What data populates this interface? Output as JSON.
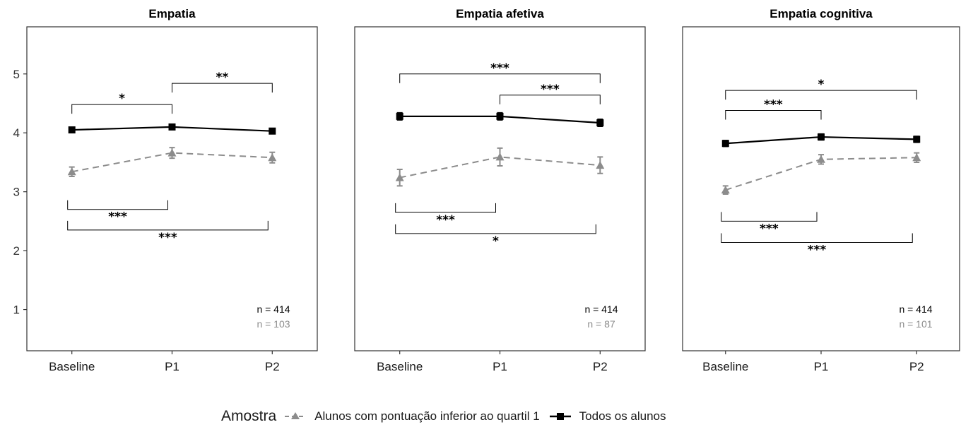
{
  "chart_data": [
    {
      "type": "line",
      "title": "Empatia",
      "categories": [
        "Baseline",
        "P1",
        "P2"
      ],
      "ylim": [
        0.3,
        5.8
      ],
      "yticks": [
        1,
        2,
        3,
        4,
        5
      ],
      "series": [
        {
          "name": "Alunos com pontuação inferior ao quartil 1",
          "values": [
            3.34,
            3.66,
            3.58
          ],
          "error": [
            0.08,
            0.09,
            0.09
          ],
          "color": "#8c8c8c",
          "dash": true,
          "marker": "triangle"
        },
        {
          "name": "Todos os alunos",
          "values": [
            4.05,
            4.1,
            4.03
          ],
          "error": [
            0.04,
            0.04,
            0.04
          ],
          "color": "#000000",
          "dash": false,
          "marker": "square"
        }
      ],
      "annotations": {
        "top": [
          {
            "from": 0,
            "to": 1,
            "level": 4.48,
            "label": "*"
          },
          {
            "from": 1,
            "to": 2,
            "level": 4.84,
            "label": "**"
          }
        ],
        "bottom": [
          {
            "from": 0,
            "to": 1,
            "level": 2.7,
            "label": "***"
          },
          {
            "from": 0,
            "to": 2,
            "level": 2.35,
            "label": "***"
          }
        ]
      },
      "n_all": "n = 414",
      "n_low": "n = 103"
    },
    {
      "type": "line",
      "title": "Empatia afetiva",
      "categories": [
        "Baseline",
        "P1",
        "P2"
      ],
      "ylim": [
        0.3,
        5.8
      ],
      "yticks": [
        1,
        2,
        3,
        4,
        5
      ],
      "series": [
        {
          "name": "Alunos com pontuação inferior ao quartil 1",
          "values": [
            3.24,
            3.59,
            3.45
          ],
          "error": [
            0.14,
            0.15,
            0.14
          ],
          "color": "#8c8c8c",
          "dash": true,
          "marker": "triangle"
        },
        {
          "name": "Todos os alunos",
          "values": [
            4.28,
            4.28,
            4.17
          ],
          "error": [
            0.06,
            0.06,
            0.06
          ],
          "color": "#000000",
          "dash": false,
          "marker": "square"
        }
      ],
      "annotations": {
        "top": [
          {
            "from": 0,
            "to": 2,
            "level": 5.0,
            "label": "***"
          },
          {
            "from": 1,
            "to": 2,
            "level": 4.64,
            "label": "***"
          }
        ],
        "bottom": [
          {
            "from": 0,
            "to": 1,
            "level": 2.65,
            "label": "***"
          },
          {
            "from": 0,
            "to": 2,
            "level": 2.29,
            "label": "*"
          }
        ]
      },
      "n_all": "n = 414",
      "n_low": "n = 87"
    },
    {
      "type": "line",
      "title": "Empatia cognitiva",
      "categories": [
        "Baseline",
        "P1",
        "P2"
      ],
      "ylim": [
        0.3,
        5.8
      ],
      "yticks": [
        1,
        2,
        3,
        4,
        5
      ],
      "series": [
        {
          "name": "Alunos com pontuação inferior ao quartil 1",
          "values": [
            3.03,
            3.55,
            3.58
          ],
          "error": [
            0.07,
            0.08,
            0.08
          ],
          "color": "#8c8c8c",
          "dash": true,
          "marker": "triangle"
        },
        {
          "name": "Todos os alunos",
          "values": [
            3.82,
            3.93,
            3.89
          ],
          "error": [
            0.05,
            0.05,
            0.05
          ],
          "color": "#000000",
          "dash": false,
          "marker": "square"
        }
      ],
      "annotations": {
        "top": [
          {
            "from": 0,
            "to": 2,
            "level": 4.72,
            "label": "*"
          },
          {
            "from": 0,
            "to": 1,
            "level": 4.38,
            "label": "***"
          }
        ],
        "bottom": [
          {
            "from": 0,
            "to": 1,
            "level": 2.5,
            "label": "***"
          },
          {
            "from": 0,
            "to": 2,
            "level": 2.14,
            "label": "***"
          }
        ]
      },
      "n_all": "n = 414",
      "n_low": "n = 101"
    }
  ],
  "legend": {
    "title": "Amostra",
    "items": [
      {
        "label": "Alunos com pontuação inferior ao quartil 1",
        "color": "#8c8c8c",
        "dash": true,
        "marker": "triangle"
      },
      {
        "label": "Todos os alunos",
        "color": "#000000",
        "dash": false,
        "marker": "square"
      }
    ]
  }
}
